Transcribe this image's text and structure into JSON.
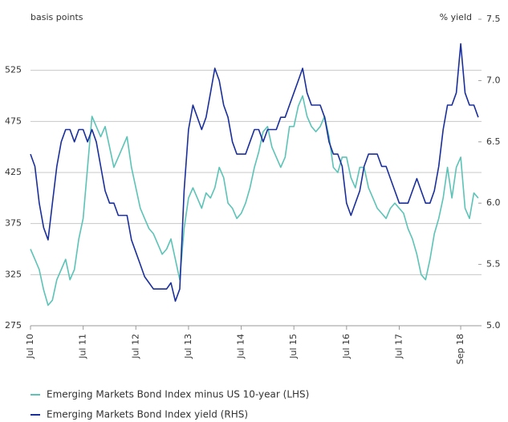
{
  "chart_data": {
    "type": "line",
    "y_label": "basis points",
    "y2_label": "% yield",
    "categories": [
      "Jul 10",
      null,
      null,
      null,
      null,
      null,
      null,
      null,
      null,
      null,
      null,
      null,
      "Jul 11",
      null,
      null,
      null,
      null,
      null,
      null,
      null,
      null,
      null,
      null,
      null,
      "Jul 12",
      null,
      null,
      null,
      null,
      null,
      null,
      null,
      null,
      null,
      null,
      null,
      "Jul 13",
      null,
      null,
      null,
      null,
      null,
      null,
      null,
      null,
      null,
      null,
      null,
      "Jul 14",
      null,
      null,
      null,
      null,
      null,
      null,
      null,
      null,
      null,
      null,
      null,
      "Jul 15",
      null,
      null,
      null,
      null,
      null,
      null,
      null,
      null,
      null,
      null,
      null,
      "Jul 16",
      null,
      null,
      null,
      null,
      null,
      null,
      null,
      null,
      null,
      null,
      null,
      "Jul 17",
      null,
      null,
      null,
      null,
      null,
      null,
      null,
      null,
      null,
      null,
      null,
      null,
      null,
      "Sep 18",
      null,
      null,
      null,
      null
    ],
    "series": [
      {
        "name": "Emerging Markets Bond Index minus US 10-year (LHS)",
        "color": "#5cc3b7",
        "values": [
          350,
          340,
          330,
          310,
          295,
          300,
          320,
          330,
          340,
          320,
          330,
          360,
          380,
          430,
          480,
          470,
          460,
          470,
          450,
          430,
          440,
          450,
          460,
          430,
          410,
          390,
          380,
          370,
          365,
          355,
          345,
          350,
          360,
          340,
          320,
          370,
          400,
          410,
          400,
          390,
          405,
          400,
          410,
          430,
          420,
          395,
          390,
          380,
          385,
          395,
          410,
          430,
          445,
          465,
          470,
          450,
          440,
          430,
          440,
          470,
          470,
          490,
          500,
          480,
          470,
          465,
          470,
          480,
          460,
          430,
          425,
          440,
          440,
          420,
          410,
          430,
          430,
          410,
          400,
          390,
          385,
          380,
          390,
          395,
          390,
          385,
          370,
          360,
          345,
          325,
          320,
          340,
          365,
          380,
          400,
          430,
          400,
          430,
          440,
          390,
          380,
          405,
          400
        ]
      },
      {
        "name": "Emerging Markets Bond Index yield (RHS)",
        "color": "#1a2f9c",
        "axis": "y2",
        "values": [
          6.4,
          6.3,
          6.0,
          5.8,
          5.7,
          6.0,
          6.3,
          6.5,
          6.6,
          6.6,
          6.5,
          6.6,
          6.6,
          6.5,
          6.6,
          6.5,
          6.3,
          6.1,
          6.0,
          6.0,
          5.9,
          5.9,
          5.9,
          5.7,
          5.6,
          5.5,
          5.4,
          5.35,
          5.3,
          5.3,
          5.3,
          5.3,
          5.35,
          5.2,
          5.3,
          6.1,
          6.6,
          6.8,
          6.7,
          6.6,
          6.7,
          6.9,
          7.1,
          7.0,
          6.8,
          6.7,
          6.5,
          6.4,
          6.4,
          6.4,
          6.5,
          6.6,
          6.6,
          6.5,
          6.6,
          6.6,
          6.6,
          6.7,
          6.7,
          6.8,
          6.9,
          7.0,
          7.1,
          6.9,
          6.8,
          6.8,
          6.8,
          6.7,
          6.5,
          6.4,
          6.4,
          6.3,
          6.0,
          5.9,
          6.0,
          6.1,
          6.3,
          6.4,
          6.4,
          6.4,
          6.3,
          6.3,
          6.2,
          6.1,
          6.0,
          6.0,
          6.0,
          6.1,
          6.2,
          6.1,
          6.0,
          6.0,
          6.1,
          6.3,
          6.6,
          6.8,
          6.8,
          6.9,
          7.3,
          6.9,
          6.8,
          6.8,
          6.7
        ]
      }
    ],
    "ylim": [
      275,
      575
    ],
    "yticks": [
      275,
      325,
      375,
      425,
      475,
      525
    ],
    "y2lim": [
      5.0,
      7.5
    ],
    "y2ticks": [
      {
        "value": 5,
        "label": "5.0"
      },
      5.5,
      {
        "value": 6,
        "label": "6.0"
      },
      6.5,
      {
        "value": 7,
        "label": "7.0"
      },
      7.5
    ],
    "grid": true
  }
}
